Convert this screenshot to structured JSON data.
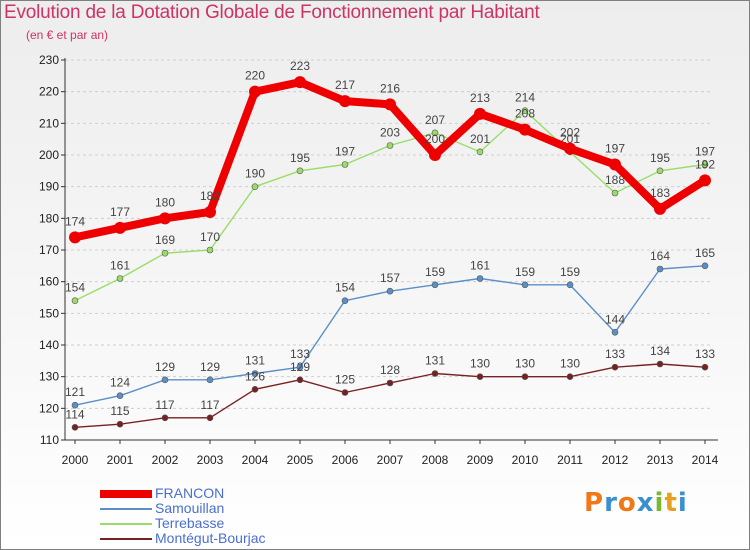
{
  "title": "Evolution de la Dotation Globale de Fonctionnement par Habitant",
  "subtitle": "(en € et par an)",
  "logo": {
    "text": "Proxiti",
    "colors": [
      "#f07818",
      "#3a8fd0",
      "#f07818",
      "#3a8fd0",
      "#7ab830",
      "#e8a020",
      "#3a8fd0"
    ]
  },
  "chart_data": {
    "type": "line",
    "title": "Evolution de la Dotation Globale de Fonctionnement par Habitant",
    "subtitle": "(en € et par an)",
    "xlabel": "",
    "ylabel": "",
    "x": [
      "2000",
      "2001",
      "2002",
      "2003",
      "2004",
      "2005",
      "2006",
      "2007",
      "2008",
      "2009",
      "2010",
      "2011",
      "2012",
      "2013",
      "2014"
    ],
    "ylim": [
      110,
      230
    ],
    "yticks": [
      110,
      120,
      130,
      140,
      150,
      160,
      170,
      180,
      190,
      200,
      210,
      220,
      230
    ],
    "grid": "horizontal dashed",
    "legend_position": "bottom-left",
    "series": [
      {
        "name": "FRANCON",
        "color": "#ee0000",
        "values": [
          174,
          177,
          180,
          182,
          220,
          223,
          217,
          216,
          200,
          213,
          208,
          202,
          197,
          183,
          192
        ]
      },
      {
        "name": "Samouillan",
        "color": "#5b8fc8",
        "values": [
          121,
          124,
          129,
          129,
          131,
          133,
          154,
          157,
          159,
          161,
          159,
          159,
          144,
          164,
          165
        ]
      },
      {
        "name": "Terrebasse",
        "color": "#99dd66",
        "values": [
          154,
          161,
          169,
          170,
          190,
          195,
          197,
          203,
          207,
          201,
          214,
          201,
          188,
          195,
          197
        ]
      },
      {
        "name": "Montégut-Bourjac",
        "color": "#772222",
        "values": [
          114,
          115,
          117,
          117,
          126,
          129,
          125,
          128,
          131,
          130,
          130,
          130,
          133,
          134,
          133
        ]
      }
    ]
  }
}
